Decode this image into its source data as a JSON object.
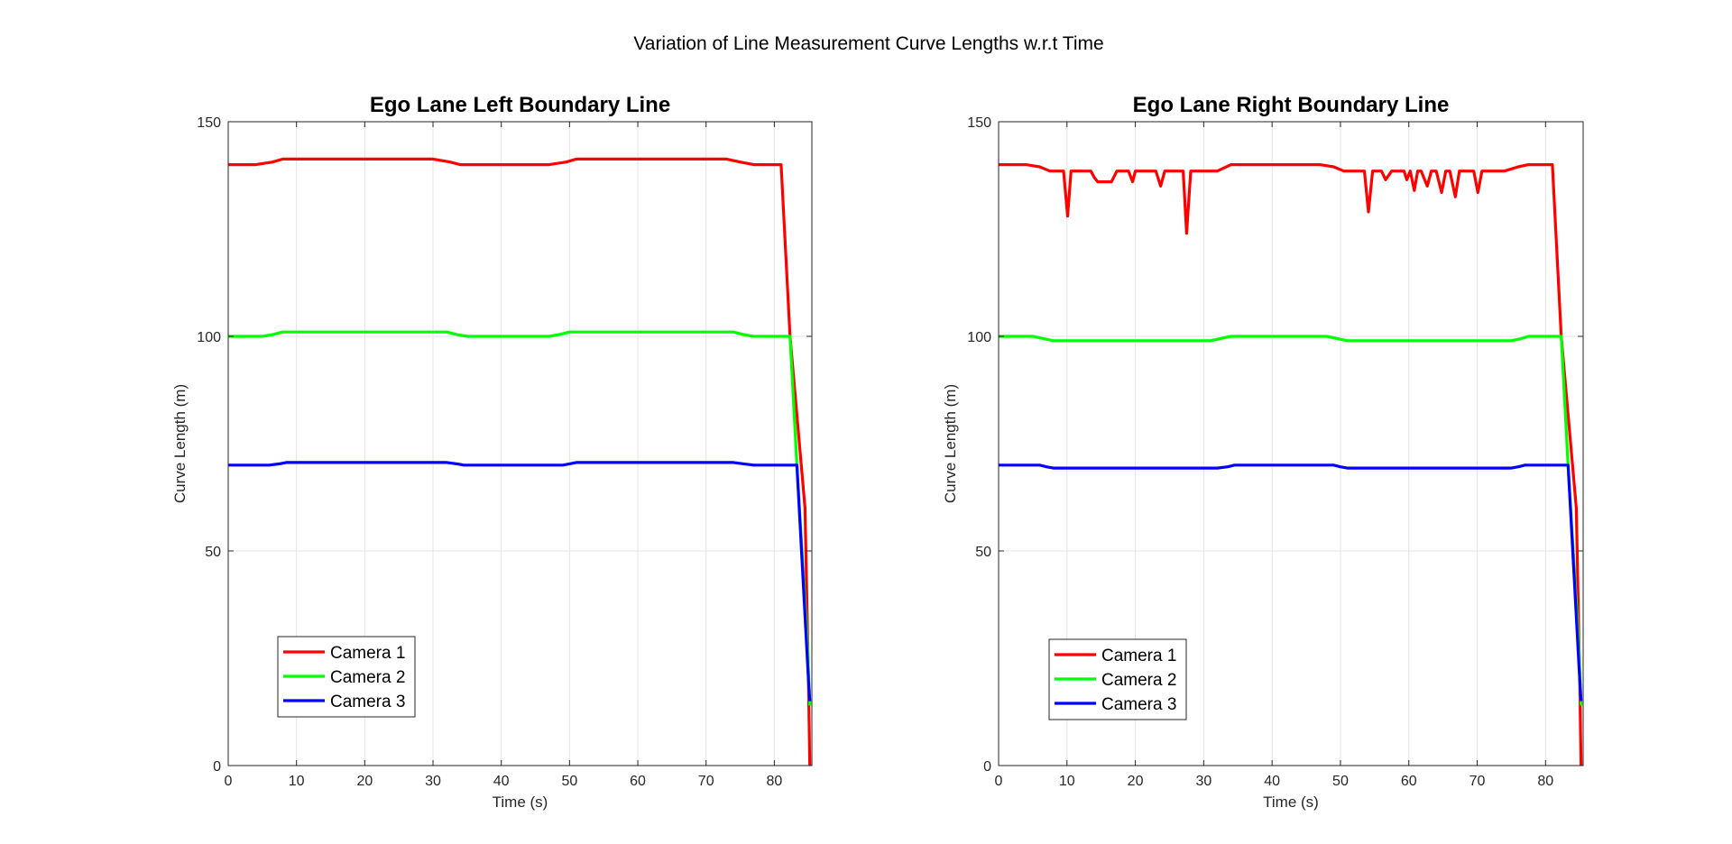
{
  "figure": {
    "suptitle": "Variation of Line Measurement Curve Lengths w.r.t Time"
  },
  "colors": {
    "camera1": "#ff0000",
    "camera2": "#00ff00",
    "camera3": "#0000ff",
    "grid": "#e3e3e3",
    "axis": "#262626"
  },
  "chart_data": [
    {
      "type": "line",
      "title": "Ego Lane Left Boundary Line",
      "xlabel": "Time (s)",
      "ylabel": "Curve Length (m)",
      "xlim": [
        0,
        85.5
      ],
      "ylim": [
        0,
        150
      ],
      "xticks": [
        0,
        10,
        20,
        30,
        40,
        50,
        60,
        70,
        80
      ],
      "yticks": [
        0,
        50,
        100,
        150
      ],
      "grid": true,
      "legend_position": "bottom-left",
      "series": [
        {
          "name": "Camera 1",
          "color_key": "camera1",
          "x": [
            0,
            4,
            6.5,
            8,
            30,
            32.5,
            34,
            47,
            49.5,
            51,
            73,
            75,
            77,
            81,
            82.3,
            84.5,
            85,
            85.2
          ],
          "y": [
            140,
            140,
            140.6,
            141.3,
            141.3,
            140.6,
            140,
            140,
            140.6,
            141.3,
            141.3,
            140.6,
            140,
            140,
            100,
            60,
            20,
            0
          ]
        },
        {
          "name": "Camera 2",
          "color_key": "camera2",
          "x": [
            0,
            5,
            6.5,
            8,
            32,
            33.5,
            35,
            47,
            48.5,
            50,
            74,
            75.5,
            77,
            82.3,
            83.3,
            84.8,
            85.2
          ],
          "y": [
            100,
            100,
            100.4,
            101,
            101,
            100.4,
            100,
            100,
            100.4,
            101,
            101,
            100.4,
            100,
            100,
            70,
            30,
            14
          ]
        },
        {
          "name": "Camera 3",
          "color_key": "camera3",
          "x": [
            0,
            6,
            7.5,
            8.5,
            32,
            33.5,
            34.5,
            49,
            50,
            51,
            74,
            75.5,
            77,
            83.3,
            85,
            85.2
          ],
          "y": [
            70,
            70,
            70.3,
            70.6,
            70.6,
            70.3,
            70,
            70,
            70.3,
            70.6,
            70.6,
            70.3,
            70,
            70,
            20,
            15
          ]
        }
      ]
    },
    {
      "type": "line",
      "title": "Ego Lane Right Boundary Line",
      "xlabel": "Time (s)",
      "ylabel": "Curve Length (m)",
      "xlim": [
        0,
        85.5
      ],
      "ylim": [
        0,
        150
      ],
      "xticks": [
        0,
        10,
        20,
        30,
        40,
        50,
        60,
        70,
        80
      ],
      "yticks": [
        0,
        50,
        100,
        150
      ],
      "grid": true,
      "legend_position": "bottom-left",
      "series": [
        {
          "name": "Camera 1",
          "color_key": "camera1",
          "x": [
            0,
            4,
            6,
            7.5,
            9.5,
            10.1,
            10.6,
            11,
            13.5,
            14,
            14.5,
            16.5,
            17.3,
            19,
            19.6,
            20,
            23,
            23.7,
            24.3,
            27,
            27.5,
            28.1,
            29,
            32,
            34,
            47,
            49,
            50.5,
            53.5,
            54.1,
            54.7,
            56,
            56.6,
            57.5,
            59.3,
            59.7,
            60.2,
            60.8,
            61.3,
            61.8,
            62.7,
            63.3,
            64,
            64.8,
            65.4,
            66,
            66.8,
            67.4,
            68,
            69.5,
            70.1,
            70.7,
            74,
            76,
            77.5,
            81,
            82.3,
            84.5,
            85,
            85.2
          ],
          "y": [
            140,
            140,
            139.5,
            138.5,
            138.5,
            128,
            138.5,
            138.5,
            138.5,
            137,
            136,
            136,
            138.5,
            138.5,
            136,
            138.5,
            138.5,
            135,
            138.5,
            138.5,
            124,
            138.5,
            138.5,
            138.5,
            140,
            140,
            139.5,
            138.5,
            138.5,
            129,
            138.5,
            138.5,
            136.5,
            138.5,
            138.5,
            136.5,
            138.5,
            134,
            138.5,
            138.5,
            135,
            138.5,
            138.5,
            133.5,
            138.5,
            138.5,
            132.5,
            138.5,
            138.5,
            138.5,
            133.5,
            138.5,
            138.5,
            139.5,
            140,
            140,
            100,
            60,
            20,
            0
          ]
        },
        {
          "name": "Camera 2",
          "color_key": "camera2",
          "x": [
            0,
            5,
            6.5,
            8,
            31,
            32.5,
            34,
            48,
            49.5,
            51,
            75,
            76.5,
            77.5,
            82.3,
            83.3,
            84.8,
            85.2
          ],
          "y": [
            100,
            100,
            99.5,
            99,
            99,
            99.5,
            100,
            100,
            99.5,
            99,
            99,
            99.5,
            100,
            100,
            70,
            30,
            14
          ]
        },
        {
          "name": "Camera 3",
          "color_key": "camera3",
          "x": [
            0,
            6,
            7,
            8,
            32,
            33.5,
            34.5,
            49,
            50,
            51,
            75,
            76,
            77,
            83.3,
            85,
            85.2
          ],
          "y": [
            70,
            70,
            69.6,
            69.3,
            69.3,
            69.6,
            70,
            70,
            69.6,
            69.3,
            69.3,
            69.6,
            70,
            70,
            20,
            15
          ]
        }
      ]
    }
  ]
}
